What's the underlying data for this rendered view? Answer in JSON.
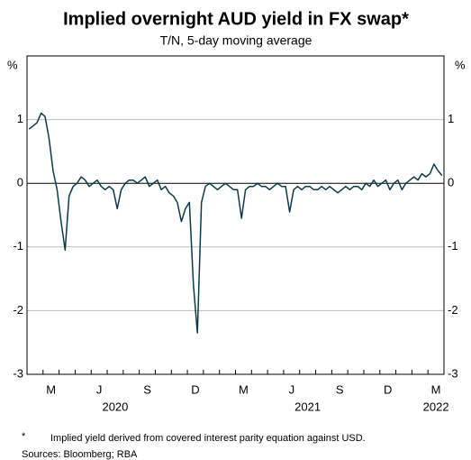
{
  "chart_data": {
    "type": "line",
    "title": "Implied overnight AUD yield in FX swap*",
    "subtitle": "T/N, 5-day moving average",
    "y_unit": "%",
    "y2_unit": "%",
    "footnote_marker": "*",
    "footnote": "Implied yield derived from covered interest parity equation against USD.",
    "sources": "Sources: Bloomberg; RBA",
    "xlim": [
      "2020-02",
      "2022-03"
    ],
    "xticks": [
      {
        "value": "2020-03",
        "label": "M"
      },
      {
        "value": "2020-06",
        "label": "J"
      },
      {
        "value": "2020-09",
        "label": "S"
      },
      {
        "value": "2020-12",
        "label": "D"
      },
      {
        "value": "2021-03",
        "label": "M"
      },
      {
        "value": "2021-06",
        "label": "J"
      },
      {
        "value": "2021-09",
        "label": "S"
      },
      {
        "value": "2021-12",
        "label": "D"
      },
      {
        "value": "2022-03",
        "label": "M"
      }
    ],
    "year_labels": [
      {
        "value": "2020-07",
        "label": "2020"
      },
      {
        "value": "2021-07",
        "label": "2021"
      },
      {
        "value": "2022-03",
        "label": "2022"
      }
    ],
    "ylim": [
      -3,
      2
    ],
    "yticks": [
      -3,
      -2,
      -1,
      0,
      1
    ],
    "grid": true,
    "x": [
      "2020-02",
      "2020-02",
      "2020-02",
      "2020-02",
      "2020-03",
      "2020-03",
      "2020-03",
      "2020-03",
      "2020-04",
      "2020-04",
      "2020-04",
      "2020-04",
      "2020-05",
      "2020-05",
      "2020-05",
      "2020-05",
      "2020-06",
      "2020-06",
      "2020-06",
      "2020-06",
      "2020-07",
      "2020-07",
      "2020-07",
      "2020-07",
      "2020-08",
      "2020-08",
      "2020-08",
      "2020-08",
      "2020-09",
      "2020-09",
      "2020-09",
      "2020-09",
      "2020-10",
      "2020-10",
      "2020-10",
      "2020-10",
      "2020-11",
      "2020-11",
      "2020-11",
      "2020-11",
      "2020-12",
      "2020-12",
      "2020-12",
      "2020-12",
      "2021-01",
      "2021-01",
      "2021-01",
      "2021-01",
      "2021-02",
      "2021-02",
      "2021-02",
      "2021-02",
      "2021-03",
      "2021-03",
      "2021-03",
      "2021-03",
      "2021-04",
      "2021-04",
      "2021-04",
      "2021-04",
      "2021-05",
      "2021-05",
      "2021-05",
      "2021-05",
      "2021-06",
      "2021-06",
      "2021-06",
      "2021-06",
      "2021-07",
      "2021-07",
      "2021-07",
      "2021-07",
      "2021-08",
      "2021-08",
      "2021-08",
      "2021-08",
      "2021-09",
      "2021-09",
      "2021-09",
      "2021-09",
      "2021-10",
      "2021-10",
      "2021-10",
      "2021-10",
      "2021-11",
      "2021-11",
      "2021-11",
      "2021-11",
      "2021-12",
      "2021-12",
      "2021-12",
      "2021-12",
      "2022-01",
      "2022-01",
      "2022-01",
      "2022-01",
      "2022-02",
      "2022-02",
      "2022-02",
      "2022-02",
      "2022-03",
      "2022-03",
      "2022-03",
      "2022-03"
    ],
    "series": [
      {
        "name": "Implied yield",
        "color": "#0b3a4a",
        "values": [
          0.85,
          0.9,
          0.95,
          1.1,
          1.05,
          0.7,
          0.2,
          -0.1,
          -0.6,
          -1.05,
          -0.2,
          -0.05,
          0.0,
          0.1,
          0.05,
          -0.05,
          0.0,
          0.05,
          -0.05,
          -0.1,
          -0.05,
          -0.1,
          -0.4,
          -0.1,
          0.0,
          0.05,
          0.05,
          0.0,
          0.05,
          0.1,
          -0.05,
          0.0,
          0.05,
          -0.1,
          -0.05,
          -0.15,
          -0.2,
          -0.3,
          -0.6,
          -0.4,
          -0.3,
          -1.6,
          -2.35,
          -0.3,
          -0.05,
          0.0,
          -0.05,
          -0.1,
          -0.05,
          0.0,
          -0.05,
          -0.1,
          -0.1,
          -0.55,
          -0.1,
          -0.05,
          -0.05,
          0.0,
          -0.05,
          -0.05,
          -0.1,
          -0.05,
          0.0,
          -0.05,
          -0.05,
          -0.45,
          -0.1,
          -0.05,
          -0.1,
          -0.05,
          -0.05,
          -0.1,
          -0.1,
          -0.05,
          -0.1,
          -0.05,
          -0.1,
          -0.15,
          -0.1,
          -0.05,
          -0.1,
          -0.05,
          -0.05,
          -0.1,
          0.0,
          -0.05,
          0.05,
          -0.05,
          0.0,
          0.05,
          -0.1,
          0.0,
          0.05,
          -0.1,
          0.0,
          0.05,
          0.1,
          0.05,
          0.15,
          0.1,
          0.15,
          0.3,
          0.2,
          0.12
        ]
      }
    ]
  }
}
